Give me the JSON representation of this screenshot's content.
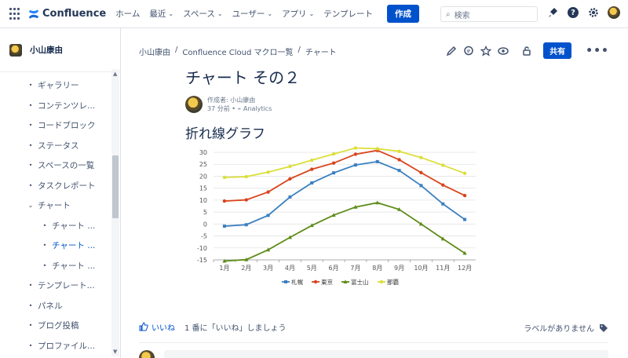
{
  "nav": {
    "logo": "Confluence",
    "items": [
      {
        "label": "ホーム",
        "chevron": false
      },
      {
        "label": "最近",
        "chevron": true
      },
      {
        "label": "スペース",
        "chevron": true
      },
      {
        "label": "ユーザー",
        "chevron": true
      },
      {
        "label": "アプリ",
        "chevron": true
      },
      {
        "label": "テンプレート",
        "chevron": false
      }
    ],
    "create_label": "作成",
    "search_placeholder": "検索"
  },
  "sidebar": {
    "space_name": "小山康由",
    "items": [
      {
        "label": "ギャラリー",
        "level": 0,
        "marker": "•",
        "selected": false
      },
      {
        "label": "コンテンツレ...",
        "level": 0,
        "marker": "•",
        "selected": false
      },
      {
        "label": "コードブロック",
        "level": 0,
        "marker": "•",
        "selected": false
      },
      {
        "label": "ステータス",
        "level": 0,
        "marker": "•",
        "selected": false
      },
      {
        "label": "スペースの一覧",
        "level": 0,
        "marker": "•",
        "selected": false
      },
      {
        "label": "タスクレポート",
        "level": 0,
        "marker": "•",
        "selected": false
      },
      {
        "label": "チャート",
        "level": 0,
        "marker": "⌄",
        "selected": false
      },
      {
        "label": "チャート ...",
        "level": 1,
        "marker": "•",
        "selected": false
      },
      {
        "label": "チャート ...",
        "level": 1,
        "marker": "•",
        "selected": true
      },
      {
        "label": "チャート ...",
        "level": 1,
        "marker": "•",
        "selected": false
      },
      {
        "label": "テンプレート...",
        "level": 0,
        "marker": "•",
        "selected": false
      },
      {
        "label": "パネル",
        "level": 0,
        "marker": "•",
        "selected": false
      },
      {
        "label": "ブログ投稿",
        "level": 0,
        "marker": "•",
        "selected": false
      },
      {
        "label": "プロファイル...",
        "level": 0,
        "marker": "•",
        "selected": false
      }
    ]
  },
  "breadcrumb": [
    "小山康由",
    "/",
    "Confluence Cloud マクロ一覧",
    "/",
    "チャート"
  ],
  "share_label": "共有",
  "page": {
    "title": "チャート その２",
    "author": "作成者: 小山康由",
    "time": "37 分前",
    "analytics": "Analytics",
    "section_title": "折れ線グラフ"
  },
  "footer": {
    "like": "いいね",
    "like_prompt": "1 番に「いいね」しましょう",
    "labels": "ラベルがありません"
  },
  "chart_data": {
    "type": "line",
    "categories": [
      "1月",
      "2月",
      "3月",
      "4月",
      "5月",
      "6月",
      "7月",
      "8月",
      "9月",
      "10月",
      "11月",
      "12月"
    ],
    "ylim": [
      -15,
      30
    ],
    "yticks": [
      -15,
      -10,
      -5,
      0,
      5,
      10,
      15,
      20,
      25,
      30
    ],
    "grid": true,
    "legend": "bottom",
    "series": [
      {
        "name": "札幌",
        "color": "#3a7fc1",
        "marker": "square",
        "values": [
          -0.9,
          -0.3,
          3.6,
          11.3,
          17.2,
          21.4,
          24.7,
          26.1,
          22.4,
          16.1,
          8.4,
          1.9
        ]
      },
      {
        "name": "東京",
        "color": "#d9441d",
        "marker": "circle",
        "values": [
          9.6,
          10.1,
          13.4,
          18.9,
          22.9,
          25.5,
          29.2,
          30.8,
          26.9,
          21.5,
          16.3,
          11.9
        ]
      },
      {
        "name": "富士山",
        "color": "#5e8c1a",
        "marker": "triangle",
        "values": [
          -15.5,
          -14.9,
          -10.8,
          -5.6,
          -0.6,
          3.7,
          7.1,
          8.9,
          6.1,
          0.0,
          -6.2,
          -12.2
        ]
      },
      {
        "name": "那覇",
        "color": "#dbdf3a",
        "marker": "circle",
        "values": [
          19.5,
          19.8,
          21.7,
          24.1,
          26.7,
          29.3,
          31.8,
          31.5,
          30.4,
          27.8,
          24.6,
          21.2
        ]
      }
    ]
  }
}
